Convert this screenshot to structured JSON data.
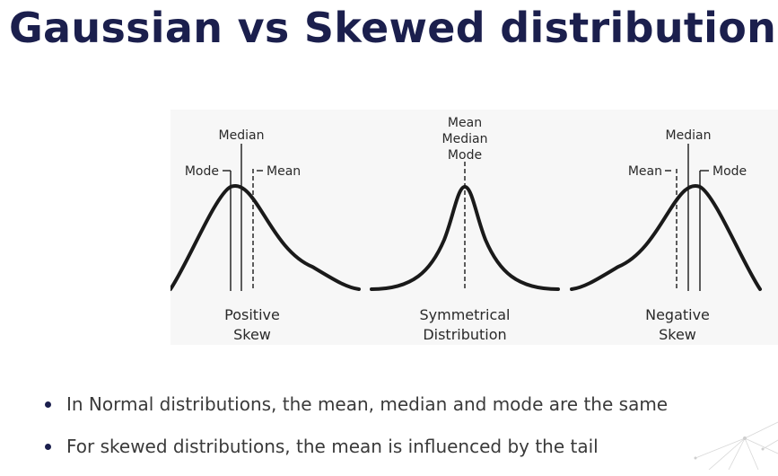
{
  "slide": {
    "title": "Gaussian vs Skewed distributions"
  },
  "diagram": {
    "panels": [
      {
        "id": "positive",
        "labels": [
          "Positive",
          "Skew"
        ],
        "marker_labels": {
          "mode": "Mode",
          "median": "Median",
          "mean": "Mean"
        }
      },
      {
        "id": "symmetrical",
        "labels": [
          "Symmetrical",
          "Distribution"
        ],
        "marker_labels": {
          "mean": "Mean",
          "median": "Median",
          "mode": "Mode"
        }
      },
      {
        "id": "negative",
        "labels": [
          "Negative",
          "Skew"
        ],
        "marker_labels": {
          "mean": "Mean",
          "median": "Median",
          "mode": "Mode"
        }
      }
    ],
    "colors": {
      "curve": "#1a1a1a",
      "panel_bg": "#f7f7f7"
    }
  },
  "bullets": [
    "In Normal distributions, the mean, median and mode are the same",
    "For skewed distributions, the mean is influenced by the tail"
  ],
  "colors": {
    "title": "#1b1f4d",
    "body_text": "#3a3a3a",
    "bullet": "#1b1f4d"
  }
}
